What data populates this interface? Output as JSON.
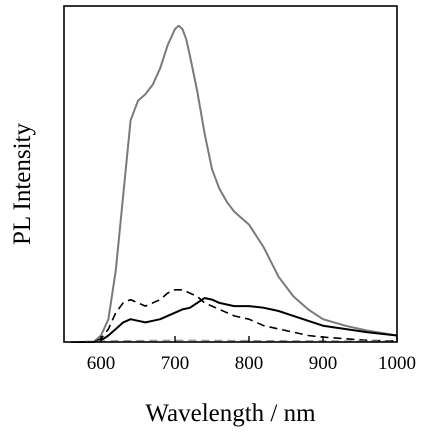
{
  "chart_data": {
    "type": "line",
    "title": "",
    "xlabel": "Wavelength / nm",
    "ylabel": "PL Intensity",
    "xlim": [
      550,
      1000
    ],
    "ylim": [
      0,
      1
    ],
    "xticks": [
      600,
      700,
      800,
      900,
      1000
    ],
    "xtick_labels": [
      "600",
      "700",
      "800",
      "900",
      "1000"
    ],
    "yticks_shown": false,
    "grid": false,
    "legend": "none",
    "series": [
      {
        "color": "#7a7a7a",
        "style": "solid",
        "x": [
          560,
          590,
          600,
          610,
          620,
          630,
          640,
          650,
          660,
          670,
          680,
          690,
          700,
          705,
          710,
          715,
          720,
          730,
          740,
          750,
          760,
          770,
          780,
          790,
          800,
          820,
          840,
          860,
          880,
          900,
          930,
          960,
          1000
        ],
        "y": [
          0.0,
          0.0,
          0.02,
          0.07,
          0.22,
          0.45,
          0.68,
          0.74,
          0.76,
          0.79,
          0.84,
          0.91,
          0.96,
          0.97,
          0.96,
          0.93,
          0.88,
          0.77,
          0.64,
          0.53,
          0.47,
          0.43,
          0.4,
          0.38,
          0.36,
          0.29,
          0.2,
          0.14,
          0.1,
          0.07,
          0.05,
          0.035,
          0.02
        ]
      },
      {
        "color": "#000000",
        "style": "dashed",
        "x": [
          560,
          590,
          600,
          610,
          620,
          630,
          640,
          650,
          660,
          670,
          680,
          690,
          700,
          710,
          720,
          730,
          740,
          750,
          760,
          780,
          800,
          820,
          840,
          860,
          880,
          900,
          930,
          960,
          1000
        ],
        "y": [
          0.0,
          0.0,
          0.01,
          0.04,
          0.09,
          0.12,
          0.13,
          0.12,
          0.11,
          0.12,
          0.13,
          0.15,
          0.16,
          0.16,
          0.15,
          0.14,
          0.12,
          0.11,
          0.1,
          0.08,
          0.07,
          0.05,
          0.04,
          0.03,
          0.02,
          0.015,
          0.01,
          0.005,
          0.003
        ]
      },
      {
        "color": "#000000",
        "style": "solid",
        "x": [
          560,
          590,
          600,
          610,
          620,
          630,
          640,
          650,
          660,
          670,
          680,
          690,
          700,
          710,
          720,
          730,
          740,
          750,
          760,
          780,
          800,
          820,
          830,
          840,
          860,
          880,
          900,
          930,
          960,
          1000
        ],
        "y": [
          0.0,
          0.0,
          0.005,
          0.02,
          0.04,
          0.06,
          0.07,
          0.065,
          0.06,
          0.065,
          0.07,
          0.08,
          0.09,
          0.1,
          0.105,
          0.12,
          0.135,
          0.13,
          0.12,
          0.11,
          0.11,
          0.105,
          0.1,
          0.095,
          0.08,
          0.065,
          0.05,
          0.04,
          0.03,
          0.02
        ]
      },
      {
        "color": "#9a9a9a",
        "style": "dashed",
        "x": [
          560,
          600,
          700,
          800,
          900,
          1000
        ],
        "y": [
          0.0,
          0.003,
          0.005,
          0.004,
          0.003,
          0.002
        ]
      }
    ]
  }
}
